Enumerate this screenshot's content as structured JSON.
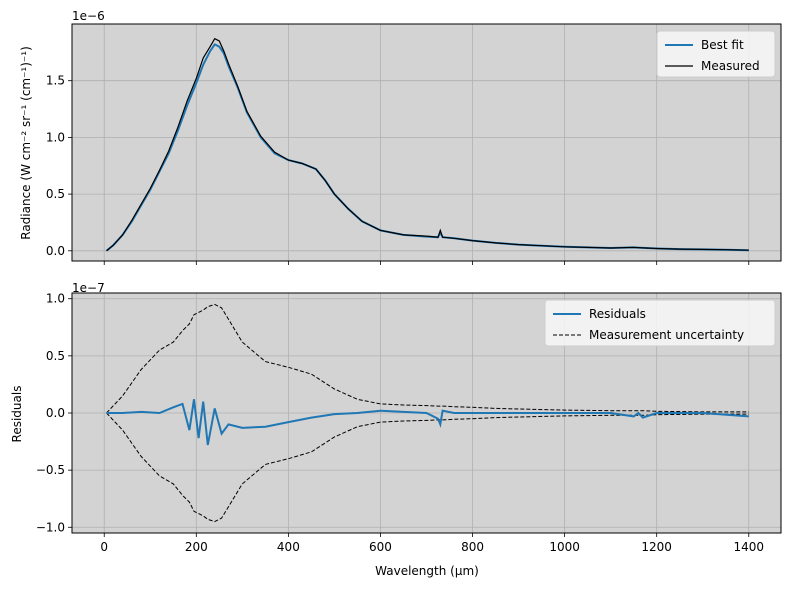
{
  "colors": {
    "background": "#d3d3d3",
    "grid": "#b0b0b0",
    "fit": "#1f77b4",
    "measured": "#000000"
  },
  "chart_data": [
    {
      "type": "line",
      "ylabel": "Radiance (W cm⁻² sr⁻¹ (cm⁻¹)⁻¹)",
      "y_offset_label": "1e−6",
      "xlim": [
        -70,
        1470
      ],
      "ylim": [
        -0.09,
        2.0
      ],
      "yscale_factor": 1e-06,
      "xticks": [
        0,
        200,
        400,
        600,
        800,
        1000,
        1200,
        1400
      ],
      "yticks": [
        0.0,
        0.5,
        1.0,
        1.5
      ],
      "ytick_labels": [
        "0.0",
        "0.5",
        "1.0",
        "1.5"
      ],
      "grid": true,
      "legend_position": "top-right",
      "legend": [
        "Best fit",
        "Measured"
      ],
      "x": [
        5,
        20,
        40,
        60,
        80,
        100,
        120,
        140,
        160,
        180,
        200,
        215,
        230,
        240,
        250,
        260,
        270,
        290,
        310,
        340,
        370,
        400,
        430,
        460,
        480,
        500,
        530,
        560,
        600,
        650,
        700,
        725,
        730,
        735,
        760,
        800,
        850,
        900,
        950,
        1000,
        1050,
        1100,
        1150,
        1200,
        1250,
        1300,
        1350,
        1400
      ],
      "series": [
        {
          "name": "Best fit",
          "values": [
            0.0,
            0.05,
            0.14,
            0.26,
            0.4,
            0.54,
            0.7,
            0.86,
            1.06,
            1.28,
            1.48,
            1.64,
            1.76,
            1.82,
            1.8,
            1.74,
            1.63,
            1.44,
            1.22,
            1.0,
            0.86,
            0.8,
            0.77,
            0.72,
            0.62,
            0.5,
            0.37,
            0.26,
            0.18,
            0.14,
            0.125,
            0.12,
            0.16,
            0.12,
            0.11,
            0.09,
            0.07,
            0.055,
            0.045,
            0.035,
            0.03,
            0.025,
            0.03,
            0.02,
            0.015,
            0.012,
            0.01,
            0.005
          ]
        },
        {
          "name": "Measured",
          "values": [
            0.0,
            0.05,
            0.14,
            0.27,
            0.41,
            0.55,
            0.71,
            0.88,
            1.09,
            1.32,
            1.52,
            1.7,
            1.8,
            1.87,
            1.85,
            1.76,
            1.65,
            1.45,
            1.23,
            1.01,
            0.87,
            0.8,
            0.77,
            0.72,
            0.62,
            0.5,
            0.37,
            0.26,
            0.18,
            0.14,
            0.13,
            0.12,
            0.18,
            0.12,
            0.11,
            0.09,
            0.07,
            0.055,
            0.045,
            0.035,
            0.03,
            0.025,
            0.03,
            0.02,
            0.015,
            0.012,
            0.01,
            0.005
          ]
        }
      ]
    },
    {
      "type": "line",
      "xlabel": "Wavelength (μm)",
      "ylabel": "Residuals",
      "y_offset_label": "1e−7",
      "xlim": [
        -70,
        1470
      ],
      "ylim": [
        -1.05,
        1.05
      ],
      "yscale_factor": 1e-07,
      "xticks": [
        0,
        200,
        400,
        600,
        800,
        1000,
        1200,
        1400
      ],
      "xtick_labels": [
        "0",
        "200",
        "400",
        "600",
        "800",
        "1000",
        "1200",
        "1400"
      ],
      "yticks": [
        -1.0,
        -0.5,
        0.0,
        0.5,
        1.0
      ],
      "ytick_labels": [
        "−1.0",
        "−0.5",
        "0.0",
        "0.5",
        "1.0"
      ],
      "grid": true,
      "legend_position": "top-right",
      "legend": [
        "Residuals",
        "Measurement uncertainty"
      ],
      "x": [
        5,
        40,
        80,
        120,
        150,
        170,
        185,
        195,
        205,
        215,
        225,
        240,
        255,
        270,
        300,
        350,
        400,
        450,
        500,
        550,
        600,
        650,
        700,
        725,
        730,
        735,
        760,
        800,
        850,
        900,
        1000,
        1100,
        1150,
        1160,
        1170,
        1200,
        1300,
        1400
      ],
      "series": [
        {
          "name": "Residuals",
          "values": [
            0.0,
            0.0,
            0.01,
            0.0,
            0.05,
            0.08,
            -0.15,
            0.12,
            -0.22,
            0.1,
            -0.28,
            0.04,
            -0.18,
            -0.1,
            -0.13,
            -0.12,
            -0.08,
            -0.04,
            -0.01,
            0.0,
            0.02,
            0.01,
            0.0,
            -0.05,
            -0.1,
            0.02,
            0.0,
            0.0,
            0.0,
            0.0,
            0.0,
            0.0,
            -0.03,
            0.0,
            -0.04,
            0.0,
            0.0,
            -0.03
          ]
        },
        {
          "name": "Measurement uncertainty",
          "values": [
            0.0,
            0.15,
            0.38,
            0.55,
            0.62,
            0.72,
            0.78,
            0.86,
            0.88,
            0.9,
            0.93,
            0.95,
            0.92,
            0.82,
            0.62,
            0.45,
            0.4,
            0.34,
            0.21,
            0.12,
            0.08,
            0.07,
            0.065,
            0.06,
            0.06,
            0.06,
            0.055,
            0.05,
            0.04,
            0.035,
            0.025,
            0.02,
            0.02,
            0.02,
            0.02,
            0.015,
            0.01,
            0.01
          ]
        }
      ]
    }
  ]
}
